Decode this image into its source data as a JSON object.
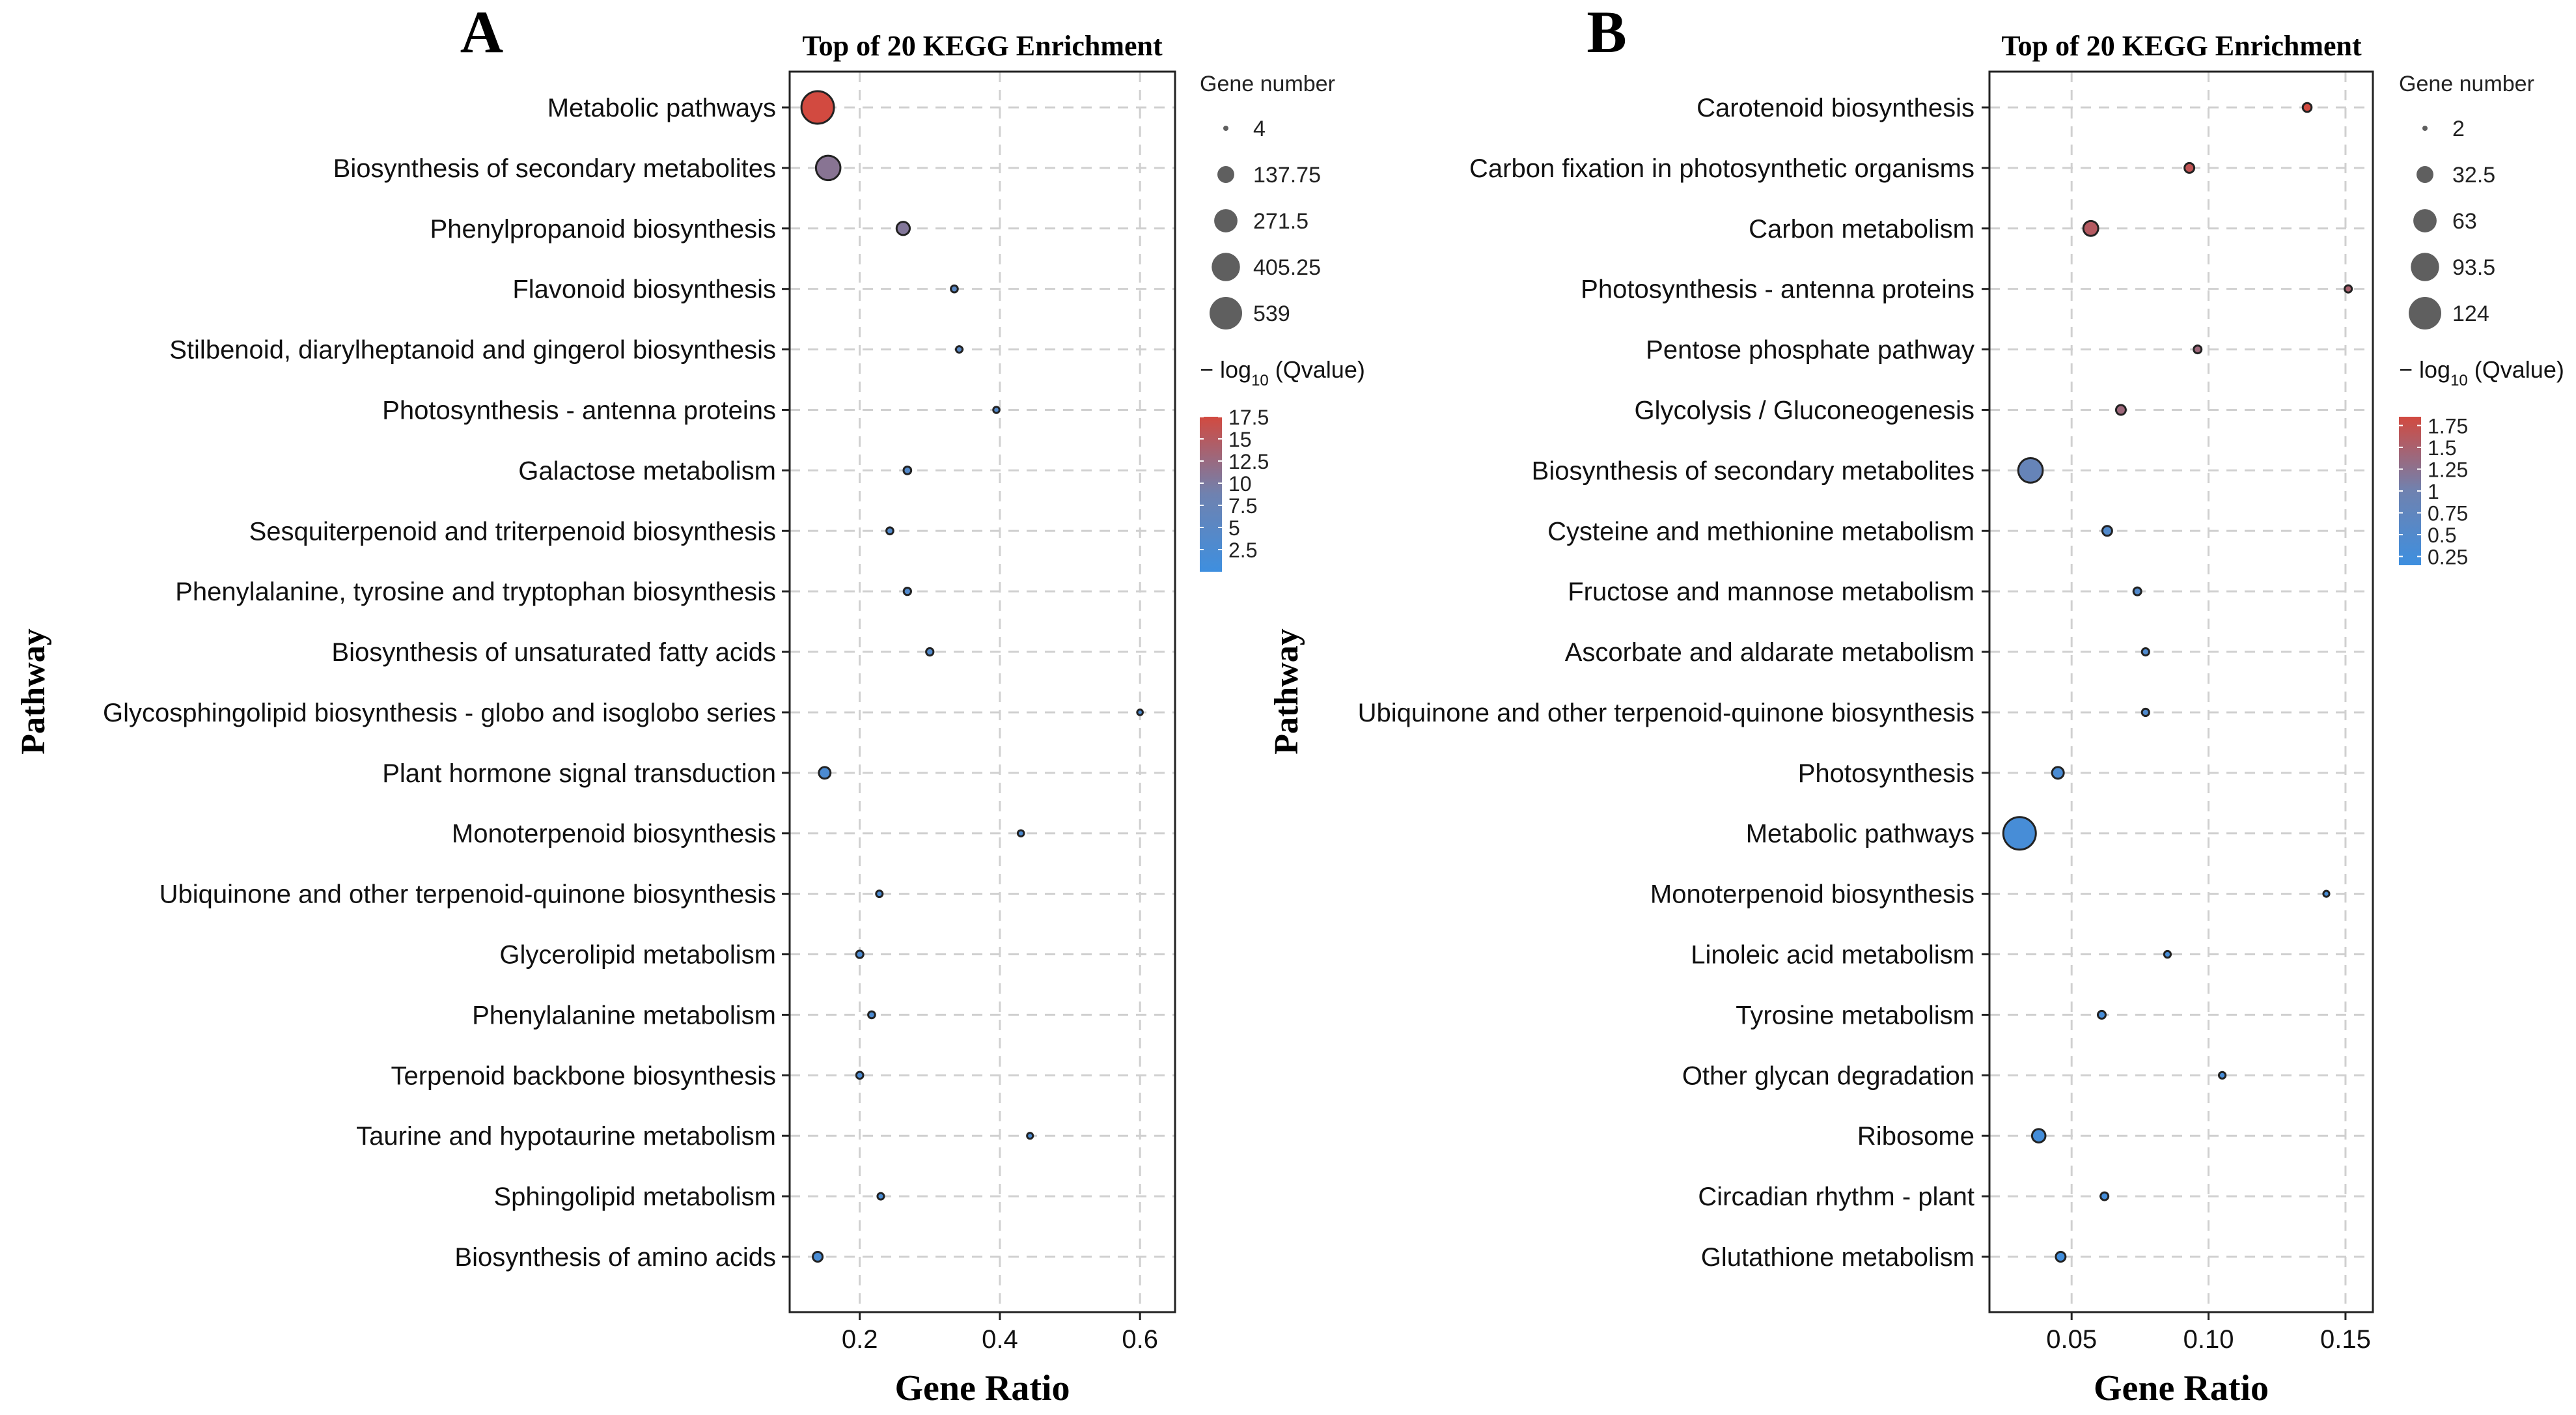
{
  "chart_data": [
    {
      "panel_label": "A",
      "type": "scatter",
      "title": "Top of 20 KEGG Enrichment",
      "xlabel": "Gene Ratio",
      "ylabel": "Pathway",
      "xlim": [
        0.1,
        0.65
      ],
      "xticks": [
        0.2,
        0.4,
        0.6
      ],
      "xtick_labels": [
        "0.2",
        "0.4",
        "0.6"
      ],
      "grid": true,
      "size_legend": {
        "title": "Gene number",
        "values": [
          4,
          137.75,
          271.5,
          405.25,
          539
        ],
        "labels": [
          "4",
          "137.75",
          "271.5",
          "405.25",
          "539"
        ]
      },
      "color_legend": {
        "title_prefix": "− log",
        "title_sub": "10",
        "title_suffix": " (Qvalue)",
        "min": 0,
        "max": 17.5,
        "ticks": [
          17.5,
          15,
          12.5,
          10,
          7.5,
          5,
          2.5
        ],
        "tick_labels": [
          "17.5",
          "15",
          "12.5",
          "10",
          "7.5",
          "5",
          "2.5"
        ],
        "colors": [
          "#3e8fdf",
          "#6f82b0",
          "#d24a40"
        ]
      },
      "points": [
        {
          "pathway": "Metabolic pathways",
          "gene_ratio": 0.14,
          "gene_number": 539,
          "neg_log10_q": 17.5
        },
        {
          "pathway": "Biosynthesis of secondary metabolites",
          "gene_ratio": 0.155,
          "gene_number": 300,
          "neg_log10_q": 11
        },
        {
          "pathway": "Phenylpropanoid biosynthesis",
          "gene_ratio": 0.262,
          "gene_number": 80,
          "neg_log10_q": 10.5
        },
        {
          "pathway": "Flavonoid biosynthesis",
          "gene_ratio": 0.335,
          "gene_number": 15,
          "neg_log10_q": 5
        },
        {
          "pathway": "Stilbenoid, diarylheptanoid and gingerol biosynthesis",
          "gene_ratio": 0.342,
          "gene_number": 12,
          "neg_log10_q": 5
        },
        {
          "pathway": "Photosynthesis - antenna proteins",
          "gene_ratio": 0.395,
          "gene_number": 10,
          "neg_log10_q": 4
        },
        {
          "pathway": "Galactose metabolism",
          "gene_ratio": 0.268,
          "gene_number": 20,
          "neg_log10_q": 4
        },
        {
          "pathway": "Sesquiterpenoid and triterpenoid biosynthesis",
          "gene_ratio": 0.243,
          "gene_number": 15,
          "neg_log10_q": 3.5
        },
        {
          "pathway": "Phenylalanine, tyrosine and tryptophan biosynthesis",
          "gene_ratio": 0.268,
          "gene_number": 18,
          "neg_log10_q": 3.5
        },
        {
          "pathway": "Biosynthesis of unsaturated fatty acids",
          "gene_ratio": 0.3,
          "gene_number": 18,
          "neg_log10_q": 3.5
        },
        {
          "pathway": "Glycosphingolipid biosynthesis - globo and isoglobo series",
          "gene_ratio": 0.6,
          "gene_number": 6,
          "neg_log10_q": 3
        },
        {
          "pathway": "Plant hormone signal transduction",
          "gene_ratio": 0.15,
          "gene_number": 60,
          "neg_log10_q": 2.5
        },
        {
          "pathway": "Monoterpenoid biosynthesis",
          "gene_ratio": 0.43,
          "gene_number": 10,
          "neg_log10_q": 2.5
        },
        {
          "pathway": "Ubiquinone and other terpenoid-quinone biosynthesis",
          "gene_ratio": 0.228,
          "gene_number": 12,
          "neg_log10_q": 2.5
        },
        {
          "pathway": "Glycerolipid metabolism",
          "gene_ratio": 0.2,
          "gene_number": 18,
          "neg_log10_q": 2.5
        },
        {
          "pathway": "Phenylalanine metabolism",
          "gene_ratio": 0.217,
          "gene_number": 15,
          "neg_log10_q": 2.5
        },
        {
          "pathway": "Terpenoid backbone biosynthesis",
          "gene_ratio": 0.2,
          "gene_number": 15,
          "neg_log10_q": 2.5
        },
        {
          "pathway": "Taurine and hypotaurine metabolism",
          "gene_ratio": 0.443,
          "gene_number": 8,
          "neg_log10_q": 2.5
        },
        {
          "pathway": "Sphingolipid metabolism",
          "gene_ratio": 0.23,
          "gene_number": 12,
          "neg_log10_q": 2
        },
        {
          "pathway": "Biosynthesis of amino acids",
          "gene_ratio": 0.14,
          "gene_number": 40,
          "neg_log10_q": 2
        }
      ]
    },
    {
      "panel_label": "B",
      "type": "scatter",
      "title": "Top of 20 KEGG Enrichment",
      "xlabel": "Gene Ratio",
      "ylabel": "Pathway",
      "xlim": [
        0.02,
        0.16
      ],
      "xticks": [
        0.05,
        0.1,
        0.15
      ],
      "xtick_labels": [
        "0.05",
        "0.10",
        "0.15"
      ],
      "grid": true,
      "size_legend": {
        "title": "Gene number",
        "values": [
          2,
          32.5,
          63,
          93.5,
          124
        ],
        "labels": [
          "2",
          "32.5",
          "63",
          "93.5",
          "124"
        ]
      },
      "color_legend": {
        "title_prefix": "− log",
        "title_sub": "10",
        "title_suffix": " (Qvalue)",
        "min": 0.15,
        "max": 1.85,
        "ticks": [
          1.75,
          1.5,
          1.25,
          1,
          0.75,
          0.5,
          0.25
        ],
        "tick_labels": [
          "1.75",
          "1.5",
          "1.25",
          "1",
          "0.75",
          "0.5",
          "0.25"
        ],
        "colors": [
          "#3e8fdf",
          "#6f82b0",
          "#d24a40"
        ]
      },
      "points": [
        {
          "pathway": "Carotenoid biosynthesis",
          "gene_ratio": 0.136,
          "gene_number": 8,
          "neg_log10_q": 1.85
        },
        {
          "pathway": "Carbon fixation in photosynthetic organisms",
          "gene_ratio": 0.093,
          "gene_number": 10,
          "neg_log10_q": 1.7
        },
        {
          "pathway": "Carbon metabolism",
          "gene_ratio": 0.057,
          "gene_number": 25,
          "neg_log10_q": 1.6
        },
        {
          "pathway": "Photosynthesis - antenna proteins",
          "gene_ratio": 0.151,
          "gene_number": 5,
          "neg_log10_q": 1.5
        },
        {
          "pathway": "Pentose phosphate pathway",
          "gene_ratio": 0.096,
          "gene_number": 6,
          "neg_log10_q": 1.4
        },
        {
          "pathway": "Glycolysis / Gluconeogenesis",
          "gene_ratio": 0.068,
          "gene_number": 10,
          "neg_log10_q": 1.4
        },
        {
          "pathway": "Biosynthesis of secondary metabolites",
          "gene_ratio": 0.035,
          "gene_number": 70,
          "neg_log10_q": 0.85
        },
        {
          "pathway": "Cysteine and methionine metabolism",
          "gene_ratio": 0.063,
          "gene_number": 10,
          "neg_log10_q": 0.5
        },
        {
          "pathway": "Fructose and mannose metabolism",
          "gene_ratio": 0.074,
          "gene_number": 6,
          "neg_log10_q": 0.5
        },
        {
          "pathway": "Ascorbate and aldarate metabolism",
          "gene_ratio": 0.077,
          "gene_number": 5,
          "neg_log10_q": 0.45
        },
        {
          "pathway": "Ubiquinone and other terpenoid-quinone biosynthesis",
          "gene_ratio": 0.077,
          "gene_number": 5,
          "neg_log10_q": 0.45
        },
        {
          "pathway": "Photosynthesis",
          "gene_ratio": 0.045,
          "gene_number": 15,
          "neg_log10_q": 0.35
        },
        {
          "pathway": "Metabolic pathways",
          "gene_ratio": 0.031,
          "gene_number": 124,
          "neg_log10_q": 0.3
        },
        {
          "pathway": "Monoterpenoid biosynthesis",
          "gene_ratio": 0.143,
          "gene_number": 3,
          "neg_log10_q": 0.3
        },
        {
          "pathway": "Linoleic acid metabolism",
          "gene_ratio": 0.085,
          "gene_number": 4,
          "neg_log10_q": 0.3
        },
        {
          "pathway": "Tyrosine metabolism",
          "gene_ratio": 0.061,
          "gene_number": 6,
          "neg_log10_q": 0.3
        },
        {
          "pathway": "Other glycan degradation",
          "gene_ratio": 0.105,
          "gene_number": 4,
          "neg_log10_q": 0.3
        },
        {
          "pathway": "Ribosome",
          "gene_ratio": 0.038,
          "gene_number": 20,
          "neg_log10_q": 0.25
        },
        {
          "pathway": "Circadian rhythm - plant",
          "gene_ratio": 0.062,
          "gene_number": 6,
          "neg_log10_q": 0.25
        },
        {
          "pathway": "Glutathione metabolism",
          "gene_ratio": 0.046,
          "gene_number": 10,
          "neg_log10_q": 0.2
        }
      ]
    }
  ]
}
